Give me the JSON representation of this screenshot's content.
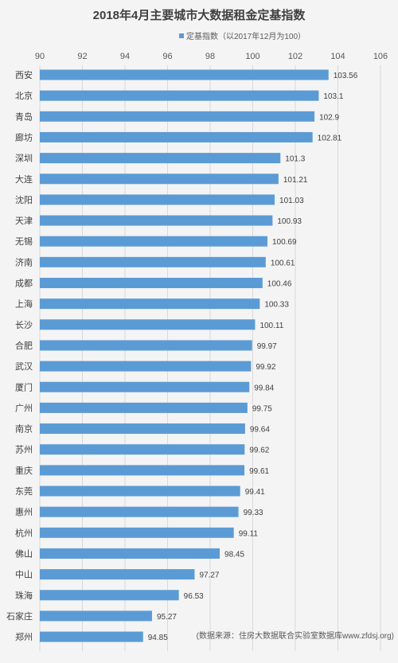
{
  "chart_data": {
    "type": "bar",
    "orientation": "horizontal",
    "title": "2018年4月主要城市大数据租金定基指数",
    "legend_label": "定基指数（以2017年12月为100）",
    "legend_position": "top",
    "xlim": [
      90,
      106
    ],
    "x_ticks": [
      "90",
      "92",
      "94",
      "96",
      "98",
      "100",
      "102",
      "104",
      "106"
    ],
    "x_axis_position": "top",
    "grid": true,
    "bar_color": "#5b9bd5",
    "categories": [
      "西安",
      "北京",
      "青岛",
      "廊坊",
      "深圳",
      "大连",
      "沈阳",
      "天津",
      "无锡",
      "济南",
      "成都",
      "上海",
      "长沙",
      "合肥",
      "武汉",
      "厦门",
      "广州",
      "南京",
      "苏州",
      "重庆",
      "东莞",
      "惠州",
      "杭州",
      "佛山",
      "中山",
      "珠海",
      "石家庄",
      "郑州"
    ],
    "values": [
      103.56,
      103.1,
      102.9,
      102.81,
      101.3,
      101.21,
      101.03,
      100.93,
      100.69,
      100.61,
      100.46,
      100.33,
      100.11,
      99.97,
      99.92,
      99.84,
      99.75,
      99.64,
      99.62,
      99.61,
      99.41,
      99.33,
      99.11,
      98.45,
      97.27,
      96.53,
      95.27,
      94.85
    ],
    "value_labels": [
      "103.56",
      "103.1",
      "102.9",
      "102.81",
      "101.3",
      "101.21",
      "101.03",
      "100.93",
      "100.69",
      "100.61",
      "100.46",
      "100.33",
      "100.11",
      "99.97",
      "99.92",
      "99.84",
      "99.75",
      "99.64",
      "99.62",
      "99.61",
      "99.41",
      "99.33",
      "99.11",
      "98.45",
      "97.27",
      "96.53",
      "95.27",
      "94.85"
    ],
    "source_note": "(数据来源：住房大数据联合实验室数据库www.zfdsj.org)"
  }
}
